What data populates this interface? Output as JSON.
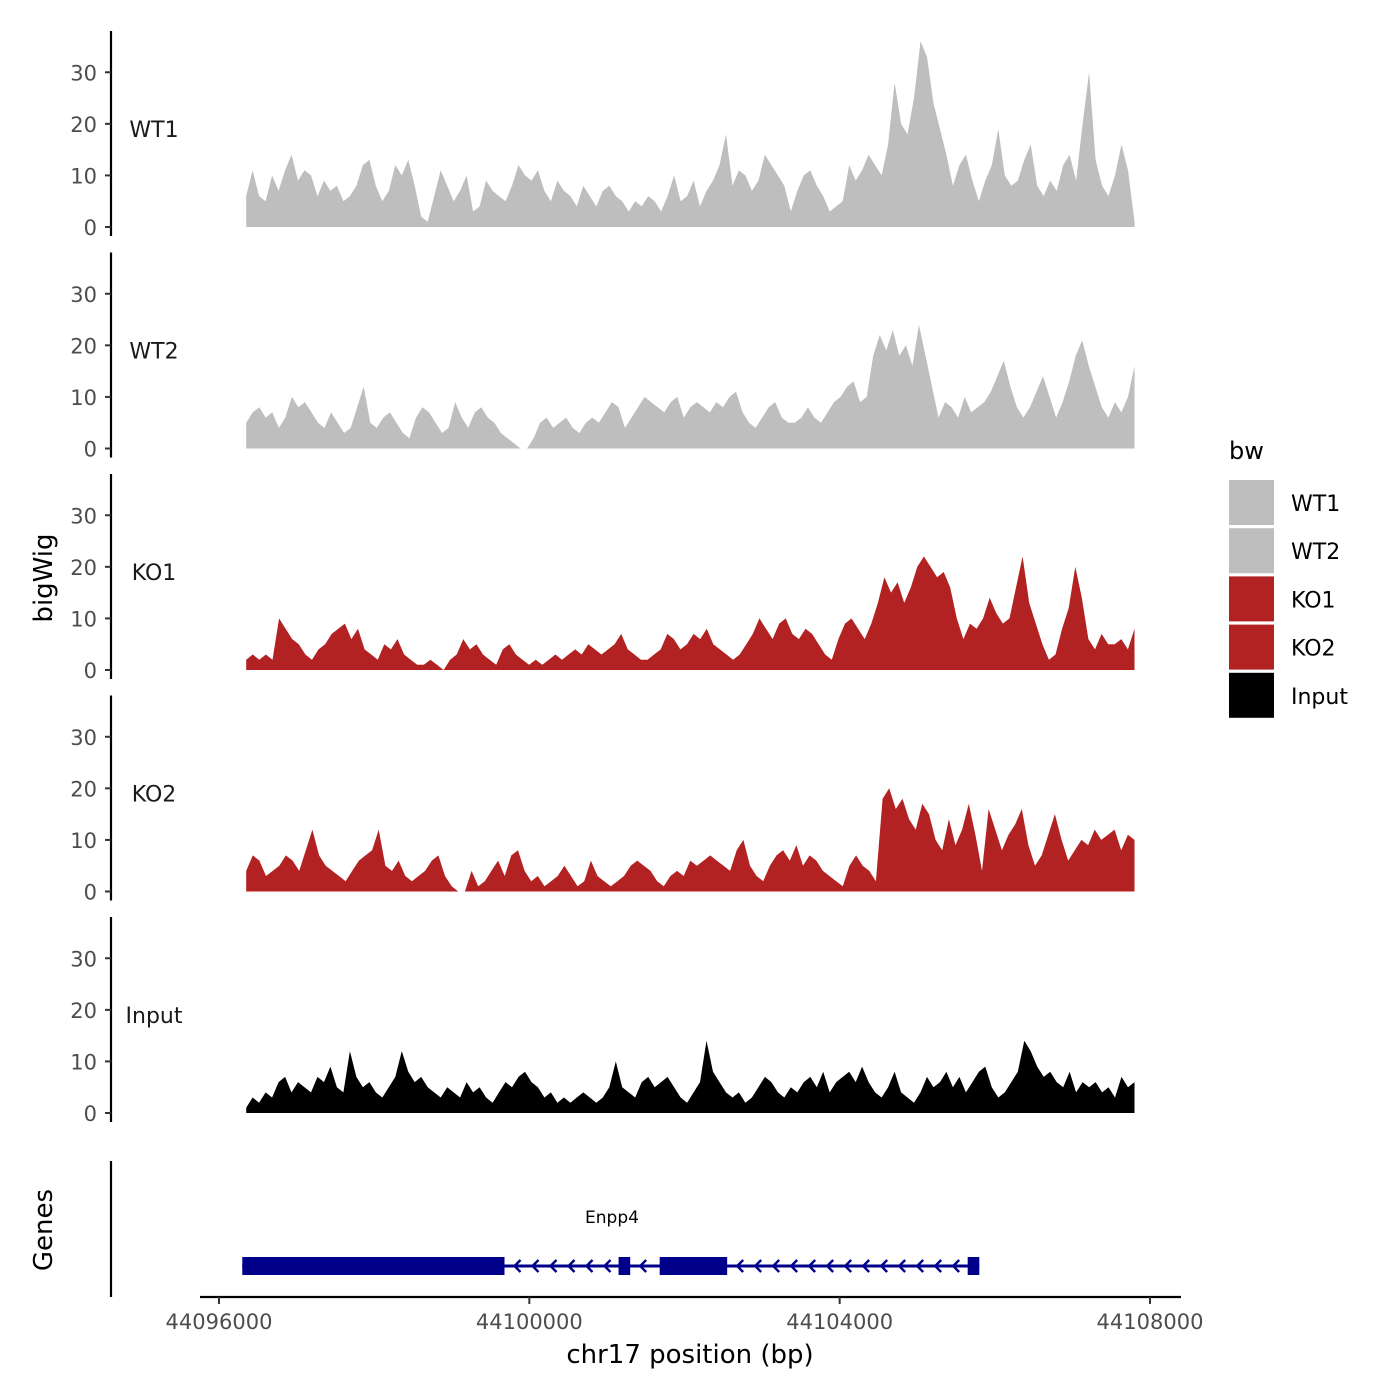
{
  "chart_data": {
    "type": "area",
    "title": "",
    "ylabel": "bigWig",
    "xlabel": "chr17 position (bp)",
    "xlim": [
      44096000,
      44108000
    ],
    "x_ticks": [
      44096000,
      44100000,
      44104000,
      44108000
    ],
    "x_tick_labels": [
      "44096000",
      "44100000",
      "44104000",
      "44108000"
    ],
    "ylim": [
      0,
      38
    ],
    "y_ticks": [
      0,
      10,
      20,
      30
    ],
    "y_tick_labels": [
      "0",
      "10",
      "20",
      "30"
    ],
    "grid": false,
    "data_range": [
      44096350,
      44107800
    ],
    "legend": {
      "title": "bw",
      "position": "right",
      "entries": [
        {
          "label": "WT1",
          "color": "#bebebe"
        },
        {
          "label": "WT2",
          "color": "#bebebe"
        },
        {
          "label": "KO1",
          "color": "#b22222"
        },
        {
          "label": "KO2",
          "color": "#b22222"
        },
        {
          "label": "Input",
          "color": "#000000"
        }
      ]
    },
    "series": [
      {
        "name": "WT1",
        "color": "#bebebe",
        "values": [
          6,
          11,
          6,
          5,
          10,
          7,
          11,
          14,
          9,
          11,
          10,
          6,
          9,
          7,
          8,
          5,
          6,
          8,
          12,
          13,
          8,
          5,
          7,
          12,
          10,
          13,
          8,
          2,
          1,
          6,
          11,
          8,
          5,
          7,
          10,
          3,
          4,
          9,
          7,
          6,
          5,
          8,
          12,
          10,
          9,
          11,
          7,
          5,
          9,
          7,
          6,
          4,
          8,
          6,
          4,
          7,
          8,
          6,
          5,
          3,
          5,
          4,
          6,
          5,
          3,
          6,
          10,
          5,
          6,
          9,
          4,
          7,
          9,
          12,
          18,
          8,
          11,
          10,
          7,
          9,
          14,
          12,
          10,
          8,
          3,
          7,
          10,
          11,
          8,
          6,
          3,
          4,
          5,
          12,
          9,
          11,
          14,
          12,
          10,
          16,
          28,
          20,
          18,
          25,
          36,
          33,
          24,
          19,
          14,
          8,
          12,
          14,
          9,
          5,
          9,
          12,
          19,
          10,
          8,
          9,
          13,
          16,
          8,
          6,
          9,
          7,
          12,
          14,
          9,
          20,
          30,
          13,
          8,
          6,
          10,
          16,
          11,
          1
        ]
      },
      {
        "name": "WT2",
        "color": "#bebebe",
        "values": [
          5,
          7,
          8,
          6,
          7,
          4,
          6,
          10,
          8,
          9,
          7,
          5,
          4,
          7,
          5,
          3,
          4,
          8,
          12,
          5,
          4,
          6,
          7,
          5,
          3,
          2,
          6,
          8,
          7,
          5,
          3,
          4,
          9,
          6,
          4,
          7,
          8,
          6,
          5,
          3,
          2,
          1,
          0,
          0,
          2,
          5,
          6,
          4,
          5,
          6,
          4,
          3,
          5,
          6,
          5,
          7,
          9,
          8,
          4,
          6,
          8,
          10,
          9,
          8,
          7,
          9,
          10,
          6,
          8,
          9,
          8,
          7,
          9,
          8,
          10,
          11,
          7,
          5,
          4,
          6,
          8,
          9,
          6,
          5,
          5,
          6,
          8,
          6,
          5,
          7,
          9,
          10,
          12,
          13,
          9,
          10,
          18,
          22,
          19,
          23,
          18,
          20,
          16,
          24,
          18,
          12,
          6,
          9,
          8,
          6,
          10,
          7,
          8,
          9,
          11,
          14,
          17,
          12,
          8,
          6,
          8,
          11,
          14,
          10,
          6,
          9,
          13,
          18,
          21,
          16,
          12,
          8,
          6,
          9,
          7,
          10,
          16
        ]
      },
      {
        "name": "KO1",
        "color": "#b22222",
        "values": [
          2,
          3,
          2,
          3,
          2,
          10,
          8,
          6,
          5,
          3,
          2,
          4,
          5,
          7,
          8,
          9,
          6,
          8,
          4,
          3,
          2,
          5,
          4,
          6,
          3,
          2,
          1,
          1,
          2,
          1,
          0,
          2,
          3,
          6,
          4,
          5,
          3,
          2,
          1,
          4,
          5,
          3,
          2,
          1,
          2,
          1,
          2,
          3,
          2,
          3,
          4,
          3,
          5,
          4,
          3,
          4,
          5,
          7,
          4,
          3,
          2,
          2,
          3,
          4,
          7,
          6,
          4,
          5,
          7,
          6,
          8,
          5,
          4,
          3,
          2,
          3,
          5,
          7,
          10,
          8,
          6,
          9,
          10,
          7,
          6,
          8,
          7,
          5,
          3,
          2,
          6,
          9,
          10,
          8,
          6,
          9,
          13,
          18,
          15,
          17,
          13,
          16,
          20,
          22,
          20,
          18,
          19,
          16,
          10,
          6,
          9,
          8,
          10,
          14,
          11,
          9,
          10,
          16,
          22,
          13,
          9,
          5,
          2,
          3,
          8,
          12,
          20,
          14,
          6,
          4,
          7,
          5,
          5,
          6,
          4,
          8
        ]
      },
      {
        "name": "KO2",
        "color": "#b22222",
        "values": [
          4,
          7,
          6,
          3,
          4,
          5,
          7,
          6,
          4,
          8,
          12,
          7,
          5,
          4,
          3,
          2,
          4,
          6,
          7,
          8,
          12,
          5,
          4,
          6,
          3,
          2,
          3,
          4,
          6,
          7,
          3,
          1,
          0,
          0,
          4,
          1,
          2,
          4,
          6,
          3,
          7,
          8,
          4,
          2,
          3,
          1,
          2,
          3,
          5,
          3,
          1,
          2,
          6,
          3,
          2,
          1,
          2,
          3,
          5,
          6,
          5,
          4,
          2,
          1,
          3,
          4,
          3,
          6,
          5,
          6,
          7,
          6,
          5,
          4,
          8,
          10,
          5,
          3,
          2,
          5,
          7,
          8,
          6,
          9,
          5,
          7,
          6,
          4,
          3,
          2,
          1,
          5,
          7,
          5,
          4,
          2,
          18,
          20,
          16,
          18,
          14,
          12,
          17,
          15,
          10,
          8,
          14,
          9,
          12,
          17,
          11,
          4,
          16,
          12,
          8,
          11,
          13,
          16,
          9,
          5,
          7,
          11,
          15,
          10,
          6,
          8,
          10,
          9,
          12,
          10,
          11,
          12,
          8,
          11,
          10
        ]
      },
      {
        "name": "Input",
        "color": "#000000",
        "values": [
          1,
          3,
          2,
          4,
          3,
          6,
          7,
          4,
          6,
          5,
          4,
          7,
          6,
          9,
          5,
          4,
          12,
          7,
          5,
          6,
          4,
          3,
          5,
          7,
          12,
          8,
          6,
          7,
          5,
          4,
          3,
          5,
          4,
          3,
          6,
          4,
          5,
          3,
          2,
          4,
          6,
          5,
          7,
          8,
          6,
          5,
          3,
          4,
          2,
          3,
          2,
          3,
          4,
          3,
          2,
          3,
          5,
          10,
          5,
          4,
          3,
          6,
          7,
          5,
          6,
          7,
          5,
          3,
          2,
          4,
          6,
          14,
          8,
          6,
          4,
          3,
          4,
          2,
          3,
          5,
          7,
          6,
          4,
          3,
          5,
          4,
          6,
          7,
          5,
          8,
          4,
          6,
          7,
          8,
          6,
          9,
          6,
          4,
          3,
          5,
          8,
          4,
          3,
          2,
          4,
          7,
          5,
          6,
          8,
          5,
          7,
          4,
          6,
          8,
          9,
          5,
          3,
          4,
          6,
          8,
          14,
          12,
          9,
          7,
          8,
          6,
          5,
          8,
          4,
          6,
          5,
          6,
          4,
          5,
          3,
          7,
          5,
          6
        ]
      }
    ],
    "genes_panel": {
      "ylabel": "Genes",
      "gene_name": "Enpp4",
      "strand": "-",
      "line_range": [
        44096300,
        44105800
      ],
      "exons": [
        {
          "start": 44096300,
          "end": 44099680,
          "size": "large"
        },
        {
          "start": 44101150,
          "end": 44101300,
          "size": "large"
        },
        {
          "start": 44101680,
          "end": 44102550,
          "size": "large"
        },
        {
          "start": 44105650,
          "end": 44105800,
          "size": "large"
        }
      ]
    }
  }
}
